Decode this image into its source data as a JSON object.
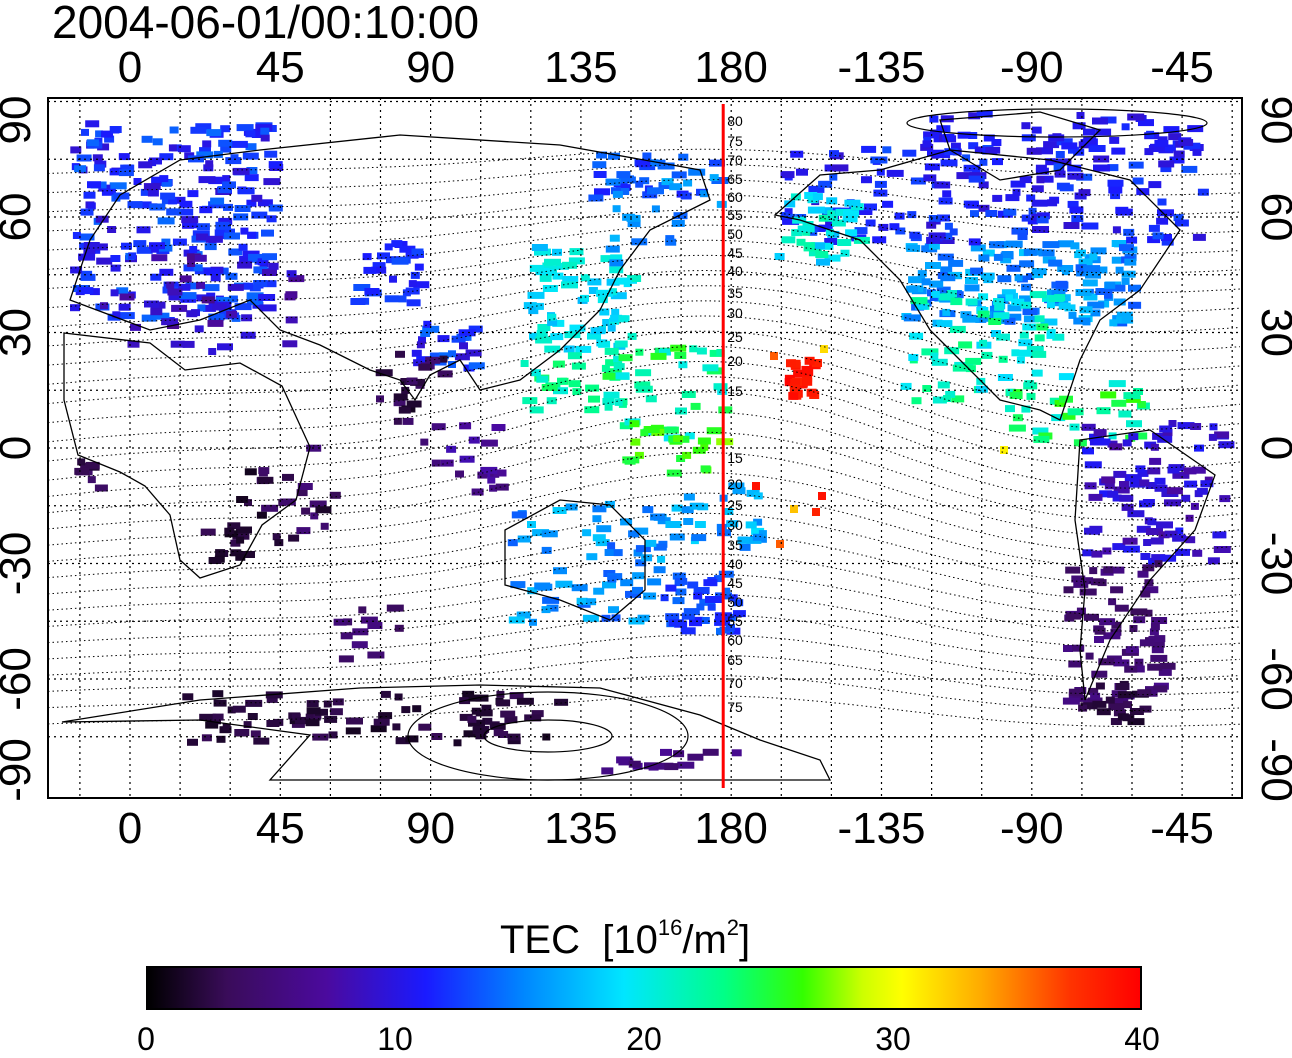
{
  "timestamp": "2004-06-01/00:10:00",
  "top_axis_labels": [
    "0",
    "45",
    "90",
    "135",
    "180",
    "-135",
    "-90",
    "-45"
  ],
  "bottom_axis_labels": [
    "0",
    "45",
    "90",
    "135",
    "180",
    "-135",
    "-90",
    "-45"
  ],
  "left_axis_labels": [
    "90",
    "60",
    "30",
    "0",
    "-30",
    "-60",
    "-90"
  ],
  "right_axis_labels": [
    "90",
    "60",
    "30",
    "0",
    "-30",
    "-60",
    "-90"
  ],
  "magnetic_contour_labels_north": [
    "80",
    "75",
    "70",
    "65",
    "60",
    "55",
    "50",
    "45",
    "40",
    "35",
    "30",
    "25",
    "20",
    "15"
  ],
  "magnetic_contour_labels_south": [
    "15",
    "20",
    "25",
    "30",
    "35",
    "40",
    "45",
    "50",
    "55",
    "60",
    "65",
    "70",
    "75"
  ],
  "colorbar": {
    "title": "TEC",
    "unit_prefix": "[10",
    "unit_exp": "16",
    "unit_mid": "/m",
    "unit_exp2": "2",
    "unit_suffix": "]",
    "ticks": [
      "0",
      "10",
      "20",
      "30",
      "40"
    ],
    "min": 0,
    "max": 40
  },
  "meridian_marker_longitude": 180,
  "colors": {
    "meridian": "#ff0000",
    "background": "#ffffff"
  }
}
